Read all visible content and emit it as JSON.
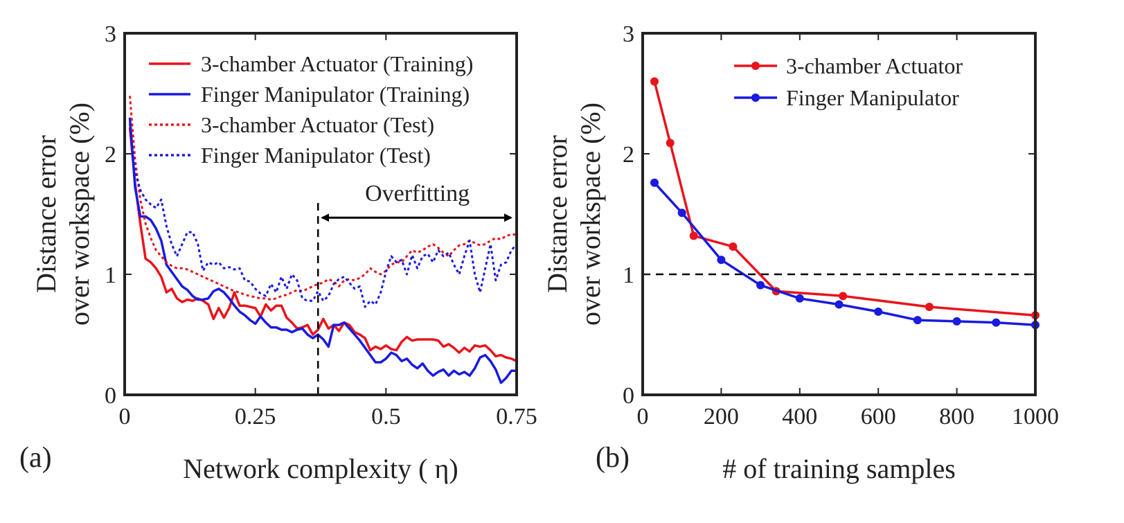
{
  "chart_data": [
    {
      "id": "a",
      "type": "line",
      "panel_label": "(a)",
      "xlabel": "Network complexity ( η)",
      "ylabel_lines": [
        "Distance error",
        "over workspace (%)"
      ],
      "xlim": [
        0,
        0.75
      ],
      "ylim": [
        0,
        3
      ],
      "xticks": [
        0,
        0.25,
        0.5,
        0.75
      ],
      "xtick_labels": [
        "0",
        "0.25",
        "0.5",
        "0.75"
      ],
      "yticks": [
        0,
        1,
        2,
        3
      ],
      "ytick_labels": [
        "0",
        "1",
        "2",
        "3"
      ],
      "legend_position": "top-right",
      "annotations": [
        {
          "text": "Overfitting",
          "type": "double-arrow",
          "x_from": 0.37,
          "x_to": 0.75,
          "y": 1.47
        },
        {
          "type": "vline",
          "x": 0.37,
          "style": "dashed",
          "y_from": 0,
          "y_to": 1.62
        }
      ],
      "series": [
        {
          "name": "3-chamber Actuator (Training)",
          "color": "#e8141b",
          "style": "solid",
          "marker": false,
          "x": [
            0.01,
            0.02,
            0.03,
            0.04,
            0.05,
            0.06,
            0.07,
            0.08,
            0.09,
            0.1,
            0.11,
            0.12,
            0.13,
            0.14,
            0.15,
            0.16,
            0.17,
            0.18,
            0.19,
            0.2,
            0.21,
            0.22,
            0.23,
            0.24,
            0.25,
            0.26,
            0.27,
            0.28,
            0.29,
            0.3,
            0.31,
            0.32,
            0.33,
            0.34,
            0.35,
            0.36,
            0.37,
            0.38,
            0.39,
            0.4,
            0.41,
            0.42,
            0.43,
            0.44,
            0.45,
            0.46,
            0.47,
            0.48,
            0.49,
            0.5,
            0.51,
            0.52,
            0.53,
            0.54,
            0.55,
            0.56,
            0.57,
            0.58,
            0.59,
            0.6,
            0.61,
            0.62,
            0.63,
            0.64,
            0.65,
            0.66,
            0.67,
            0.68,
            0.69,
            0.7,
            0.71,
            0.72,
            0.73,
            0.74,
            0.75
          ],
          "y": [
            2.22,
            1.75,
            1.42,
            1.13,
            1.1,
            1.05,
            0.98,
            0.85,
            0.88,
            0.8,
            0.77,
            0.79,
            0.78,
            0.8,
            0.78,
            0.75,
            0.63,
            0.72,
            0.64,
            0.72,
            0.85,
            0.74,
            0.74,
            0.73,
            0.72,
            0.65,
            0.75,
            0.7,
            0.74,
            0.74,
            0.64,
            0.6,
            0.55,
            0.56,
            0.58,
            0.5,
            0.54,
            0.63,
            0.55,
            0.58,
            0.53,
            0.6,
            0.58,
            0.52,
            0.5,
            0.47,
            0.37,
            0.4,
            0.38,
            0.41,
            0.38,
            0.37,
            0.44,
            0.48,
            0.45,
            0.46,
            0.46,
            0.46,
            0.46,
            0.45,
            0.4,
            0.42,
            0.39,
            0.35,
            0.39,
            0.36,
            0.41,
            0.4,
            0.41,
            0.37,
            0.32,
            0.33,
            0.31,
            0.3,
            0.28
          ]
        },
        {
          "name": "Finger Manipulator (Training)",
          "color": "#1a1ae0",
          "style": "solid",
          "marker": false,
          "x": [
            0.01,
            0.02,
            0.03,
            0.04,
            0.05,
            0.06,
            0.07,
            0.08,
            0.09,
            0.1,
            0.11,
            0.12,
            0.13,
            0.14,
            0.15,
            0.16,
            0.17,
            0.18,
            0.19,
            0.2,
            0.21,
            0.22,
            0.23,
            0.24,
            0.25,
            0.26,
            0.27,
            0.28,
            0.29,
            0.3,
            0.31,
            0.32,
            0.33,
            0.34,
            0.35,
            0.36,
            0.37,
            0.38,
            0.39,
            0.4,
            0.41,
            0.42,
            0.43,
            0.44,
            0.45,
            0.46,
            0.47,
            0.48,
            0.49,
            0.5,
            0.51,
            0.52,
            0.53,
            0.54,
            0.55,
            0.56,
            0.57,
            0.58,
            0.59,
            0.6,
            0.61,
            0.62,
            0.63,
            0.64,
            0.65,
            0.66,
            0.67,
            0.68,
            0.69,
            0.7,
            0.71,
            0.72,
            0.73,
            0.74,
            0.75
          ],
          "y": [
            2.3,
            1.72,
            1.48,
            1.48,
            1.45,
            1.38,
            1.28,
            1.08,
            1.02,
            0.96,
            0.9,
            0.87,
            0.82,
            0.79,
            0.79,
            0.8,
            0.86,
            0.88,
            0.85,
            0.8,
            0.74,
            0.69,
            0.66,
            0.62,
            0.59,
            0.65,
            0.6,
            0.56,
            0.56,
            0.54,
            0.54,
            0.52,
            0.54,
            0.55,
            0.5,
            0.47,
            0.5,
            0.46,
            0.4,
            0.58,
            0.58,
            0.6,
            0.55,
            0.5,
            0.45,
            0.39,
            0.33,
            0.27,
            0.27,
            0.3,
            0.35,
            0.33,
            0.28,
            0.3,
            0.25,
            0.22,
            0.26,
            0.2,
            0.16,
            0.19,
            0.21,
            0.16,
            0.2,
            0.17,
            0.19,
            0.16,
            0.22,
            0.31,
            0.33,
            0.28,
            0.21,
            0.1,
            0.14,
            0.2,
            0.2
          ]
        },
        {
          "name": "3-chamber Actuator (Test)",
          "color": "#e8141b",
          "style": "dotted",
          "marker": false,
          "x": [
            0.01,
            0.02,
            0.03,
            0.04,
            0.05,
            0.06,
            0.07,
            0.08,
            0.09,
            0.1,
            0.11,
            0.12,
            0.13,
            0.14,
            0.15,
            0.16,
            0.17,
            0.18,
            0.19,
            0.2,
            0.21,
            0.22,
            0.23,
            0.24,
            0.25,
            0.26,
            0.27,
            0.28,
            0.29,
            0.3,
            0.31,
            0.32,
            0.33,
            0.34,
            0.35,
            0.36,
            0.37,
            0.38,
            0.39,
            0.4,
            0.41,
            0.42,
            0.43,
            0.44,
            0.45,
            0.46,
            0.47,
            0.48,
            0.49,
            0.5,
            0.51,
            0.52,
            0.53,
            0.54,
            0.55,
            0.56,
            0.57,
            0.58,
            0.59,
            0.6,
            0.61,
            0.62,
            0.63,
            0.64,
            0.65,
            0.66,
            0.67,
            0.68,
            0.69,
            0.7,
            0.71,
            0.72,
            0.73,
            0.74,
            0.75
          ],
          "y": [
            2.48,
            1.95,
            1.62,
            1.42,
            1.3,
            1.2,
            1.15,
            1.1,
            1.07,
            1.05,
            1.05,
            1.04,
            1.02,
            1.0,
            0.98,
            0.96,
            0.94,
            0.92,
            0.9,
            0.88,
            0.86,
            0.85,
            0.83,
            0.82,
            0.81,
            0.8,
            0.8,
            0.79,
            0.8,
            0.82,
            0.83,
            0.85,
            0.87,
            0.86,
            0.88,
            0.9,
            0.92,
            0.93,
            0.96,
            0.94,
            0.9,
            0.95,
            0.96,
            0.95,
            0.97,
            1.0,
            1.05,
            1.02,
            1.0,
            1.03,
            1.08,
            1.1,
            1.1,
            1.15,
            1.2,
            1.18,
            1.2,
            1.23,
            1.25,
            1.22,
            1.18,
            1.15,
            1.2,
            1.24,
            1.25,
            1.28,
            1.26,
            1.24,
            1.25,
            1.28,
            1.3,
            1.29,
            1.32,
            1.33,
            1.33
          ]
        },
        {
          "name": "Finger Manipulator (Test)",
          "color": "#1a1ae0",
          "style": "dotted",
          "marker": false,
          "x": [
            0.01,
            0.02,
            0.03,
            0.04,
            0.05,
            0.06,
            0.07,
            0.08,
            0.09,
            0.1,
            0.11,
            0.12,
            0.13,
            0.14,
            0.15,
            0.16,
            0.17,
            0.18,
            0.19,
            0.2,
            0.21,
            0.22,
            0.23,
            0.24,
            0.25,
            0.26,
            0.27,
            0.28,
            0.29,
            0.3,
            0.31,
            0.32,
            0.33,
            0.34,
            0.35,
            0.36,
            0.37,
            0.38,
            0.39,
            0.4,
            0.41,
            0.42,
            0.43,
            0.44,
            0.45,
            0.46,
            0.47,
            0.48,
            0.49,
            0.5,
            0.51,
            0.52,
            0.53,
            0.54,
            0.55,
            0.56,
            0.57,
            0.58,
            0.59,
            0.6,
            0.61,
            0.62,
            0.63,
            0.64,
            0.65,
            0.66,
            0.67,
            0.68,
            0.69,
            0.7,
            0.71,
            0.72,
            0.73,
            0.74,
            0.75
          ],
          "y": [
            2.25,
            1.85,
            1.7,
            1.62,
            1.58,
            1.55,
            1.62,
            1.4,
            1.25,
            1.15,
            1.25,
            1.35,
            1.35,
            1.25,
            1.03,
            1.1,
            1.08,
            1.1,
            1.05,
            1.06,
            1.04,
            1.05,
            0.95,
            0.94,
            0.88,
            0.84,
            0.82,
            0.92,
            0.85,
            0.98,
            0.88,
            1.0,
            0.95,
            0.8,
            0.78,
            0.78,
            0.86,
            0.78,
            0.82,
            0.92,
            0.96,
            0.98,
            0.93,
            0.88,
            0.9,
            0.73,
            0.78,
            0.75,
            0.85,
            1.02,
            1.15,
            1.1,
            1.12,
            1.0,
            1.16,
            1.05,
            1.15,
            1.17,
            1.1,
            1.2,
            1.15,
            1.18,
            1.08,
            1.0,
            1.15,
            1.28,
            1.0,
            0.85,
            1.05,
            1.25,
            0.95,
            1.08,
            1.1,
            1.2,
            1.25
          ]
        }
      ]
    },
    {
      "id": "b",
      "type": "line",
      "panel_label": "(b)",
      "xlabel": "# of training samples",
      "ylabel_lines": [
        "Distance error",
        "over workspace (%)"
      ],
      "xlim": [
        0,
        1000
      ],
      "ylim": [
        0,
        3
      ],
      "xticks": [
        0,
        200,
        400,
        600,
        800,
        1000
      ],
      "xtick_labels": [
        "0",
        "200",
        "400",
        "600",
        "800",
        "1000"
      ],
      "yticks": [
        0,
        1,
        2,
        3
      ],
      "ytick_labels": [
        "0",
        "1",
        "2",
        "3"
      ],
      "legend_position": "top-right",
      "annotations": [
        {
          "type": "hline",
          "y": 1.0,
          "style": "dashed"
        }
      ],
      "series": [
        {
          "name": "3-chamber Actuator",
          "color": "#e8141b",
          "style": "solid",
          "marker": true,
          "x": [
            30,
            70,
            130,
            230,
            340,
            510,
            730,
            1000
          ],
          "y": [
            2.6,
            2.09,
            1.32,
            1.23,
            0.86,
            0.82,
            0.73,
            0.66
          ]
        },
        {
          "name": "Finger Manipulator",
          "color": "#1a1ae0",
          "style": "solid",
          "marker": true,
          "x": [
            30,
            100,
            200,
            300,
            400,
            500,
            600,
            700,
            800,
            900,
            1000
          ],
          "y": [
            1.76,
            1.51,
            1.12,
            0.91,
            0.8,
            0.75,
            0.69,
            0.62,
            0.61,
            0.6,
            0.58
          ]
        }
      ]
    }
  ]
}
